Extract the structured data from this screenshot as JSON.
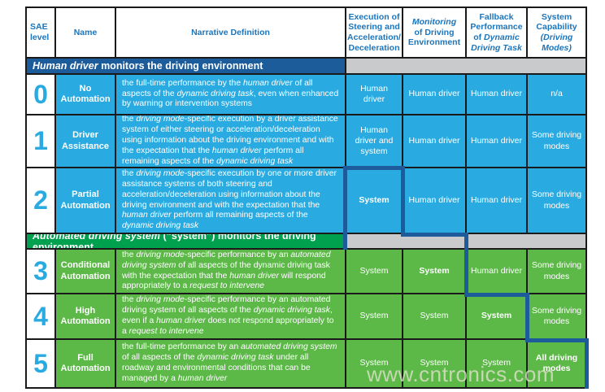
{
  "watermark": "www.cntronics.com",
  "colors": {
    "cyan_cell": "#29abe2",
    "green_cell": "#5cb948",
    "blue_band": "#1c5c9b",
    "green_band": "#00a14e",
    "gray_band": "#c9cacb",
    "header_text_blue": "#1b75bc",
    "divider_line_blue": "#1e5b9b",
    "border_black": "#1a1a1a"
  },
  "chart_data": {
    "type": "table",
    "columns": [
      "SAE level",
      "Name",
      "Narrative Definition",
      "Execution of Steering and Acceleration/Deceleration",
      "Monitoring of Driving Environment",
      "Fallback Performance of Dynamic Driving Task",
      "System Capability (Driving Modes)"
    ],
    "section_bands": [
      {
        "position": "before level 0",
        "label": "Human driver monitors the driving environment"
      },
      {
        "position": "before level 3",
        "label": "Automated driving system (“system”) monitors the driving environment"
      }
    ],
    "rows": [
      [
        "0",
        "No Automation",
        "the full-time performance by the human driver of all aspects of the dynamic driving task, even when enhanced by warning or intervention systems",
        "Human driver",
        "Human driver",
        "Human driver",
        "n/a"
      ],
      [
        "1",
        "Driver Assistance",
        "the driving mode-specific execution by a driver assistance system of either steering or acceleration/deceleration using information about the driving environment and with the expectation that the human driver perform all remaining aspects of the dynamic driving task",
        "Human driver and system",
        "Human driver",
        "Human driver",
        "Some driving modes"
      ],
      [
        "2",
        "Partial Automation",
        "the driving mode-specific execution by one or more driver assistance systems of both steering and acceleration/deceleration using information about the driving environment and with the expectation that the human driver perform all remaining aspects of the dynamic driving task",
        "System",
        "Human driver",
        "Human driver",
        "Some driving modes"
      ],
      [
        "3",
        "Conditional Automation",
        "the driving mode-specific performance by an automated driving system of all aspects of the dynamic driving task with the expectation that the human driver will respond appropriately to a request to intervene",
        "System",
        "System",
        "Human driver",
        "Some driving modes"
      ],
      [
        "4",
        "High Automation",
        "the driving mode-specific performance by an automated driving system of all aspects of the dynamic driving task, even if a human driver does not respond appropriately to a request to intervene",
        "System",
        "System",
        "System",
        "Some driving modes"
      ],
      [
        "5",
        "Full Automation",
        "the full-time performance by an automated driving system of all aspects of the dynamic driving task under all roadway and environmental conditions that can be managed by a human driver",
        "System",
        "System",
        "System",
        "All driving modes"
      ]
    ]
  },
  "table": {
    "headers": [
      {
        "runs": [
          {
            "text": "SAE\nlevel"
          }
        ]
      },
      {
        "runs": [
          {
            "text": "Name"
          }
        ]
      },
      {
        "runs": [
          {
            "text": "Narrative Definition"
          }
        ]
      },
      {
        "runs": [
          {
            "text": "Execution of\nSteering and\nAcceleration/\nDeceleration"
          }
        ]
      },
      {
        "runs": [
          {
            "text": "Monitoring",
            "italic": true
          },
          {
            "text": "\nof Driving\nEnvironment"
          }
        ]
      },
      {
        "runs": [
          {
            "text": "Fallback\nPerformance\nof "
          },
          {
            "text": "Dynamic\nDriving Task",
            "italic": true
          }
        ]
      },
      {
        "runs": [
          {
            "text": "System\nCapability\n"
          },
          {
            "text": "(Driving\nModes)",
            "italic": true
          }
        ]
      }
    ],
    "bands": [
      {
        "runs": [
          {
            "text": "Human driver",
            "italic": true
          },
          {
            "text": " monitors the driving environment"
          }
        ]
      },
      {
        "runs": [
          {
            "text": "Automated driving system",
            "italic": true
          },
          {
            "text": " (“system”) monitors the driving environment"
          }
        ]
      }
    ],
    "rows": [
      {
        "level": "0",
        "name": "No Automation",
        "narrative_runs": [
          {
            "text": "the full-time performance by the "
          },
          {
            "text": "human driver",
            "italic": true
          },
          {
            "text": " of all aspects of the "
          },
          {
            "text": "dynamic driving task",
            "italic": true
          },
          {
            "text": ", even when enhanced by warning or intervention systems"
          }
        ],
        "cells": [
          {
            "runs": [
              {
                "text": "Human driver"
              }
            ]
          },
          {
            "runs": [
              {
                "text": "Human driver"
              }
            ]
          },
          {
            "runs": [
              {
                "text": "Human driver"
              }
            ]
          },
          {
            "runs": [
              {
                "text": "n/a"
              }
            ]
          }
        ]
      },
      {
        "level": "1",
        "name": "Driver Assistance",
        "narrative_runs": [
          {
            "text": "the "
          },
          {
            "text": "driving mode",
            "italic": true
          },
          {
            "text": "-specific execution by a driver assistance system of either steering or acceleration/deceleration using information about the driving environment and with the expectation that the "
          },
          {
            "text": "human driver",
            "italic": true
          },
          {
            "text": " perform all remaining aspects of the "
          },
          {
            "text": "dynamic driving task",
            "italic": true
          }
        ],
        "cells": [
          {
            "runs": [
              {
                "text": "Human driver and system"
              }
            ]
          },
          {
            "runs": [
              {
                "text": "Human driver"
              }
            ]
          },
          {
            "runs": [
              {
                "text": "Human driver"
              }
            ]
          },
          {
            "runs": [
              {
                "text": "Some driving modes"
              }
            ]
          }
        ]
      },
      {
        "level": "2",
        "name": "Partial Automation",
        "narrative_runs": [
          {
            "text": "the "
          },
          {
            "text": "driving mode",
            "italic": true
          },
          {
            "text": "-specific execution by one or more driver assistance systems of both steering and acceleration/deceleration using information about the driving environment and with the expectation that the "
          },
          {
            "text": "human driver",
            "italic": true
          },
          {
            "text": " perform all remaining aspects of the "
          },
          {
            "text": "dynamic driving task",
            "italic": true
          }
        ],
        "cells": [
          {
            "runs": [
              {
                "text": "System",
                "bold": true
              }
            ]
          },
          {
            "runs": [
              {
                "text": "Human driver"
              }
            ]
          },
          {
            "runs": [
              {
                "text": "Human driver"
              }
            ]
          },
          {
            "runs": [
              {
                "text": "Some driving modes"
              }
            ]
          }
        ]
      },
      {
        "level": "3",
        "name": "Conditional Automation",
        "narrative_runs": [
          {
            "text": "the "
          },
          {
            "text": "driving mode",
            "italic": true
          },
          {
            "text": "-specific performance by an "
          },
          {
            "text": "automated driving system",
            "italic": true
          },
          {
            "text": " of all aspects of the dynamic driving task with the expectation that the "
          },
          {
            "text": "human driver",
            "italic": true
          },
          {
            "text": " will respond appropriately to a "
          },
          {
            "text": "request to intervene",
            "italic": true
          }
        ],
        "cells": [
          {
            "runs": [
              {
                "text": "System"
              }
            ]
          },
          {
            "runs": [
              {
                "text": "System",
                "bold": true
              }
            ]
          },
          {
            "runs": [
              {
                "text": "Human driver"
              }
            ]
          },
          {
            "runs": [
              {
                "text": "Some driving modes"
              }
            ]
          }
        ]
      },
      {
        "level": "4",
        "name": "High Automation",
        "narrative_runs": [
          {
            "text": "the "
          },
          {
            "text": "driving mode",
            "italic": true
          },
          {
            "text": "-specific performance by an automated driving system of all aspects of the "
          },
          {
            "text": "dynamic driving task",
            "italic": true
          },
          {
            "text": ", even if a "
          },
          {
            "text": "human driver",
            "italic": true
          },
          {
            "text": " does not respond appropriately to a "
          },
          {
            "text": "request to intervene",
            "italic": true
          }
        ],
        "cells": [
          {
            "runs": [
              {
                "text": "System"
              }
            ]
          },
          {
            "runs": [
              {
                "text": "System"
              }
            ]
          },
          {
            "runs": [
              {
                "text": "System",
                "bold": true
              }
            ]
          },
          {
            "runs": [
              {
                "text": "Some driving modes"
              }
            ]
          }
        ]
      },
      {
        "level": "5",
        "name": "Full Automation",
        "narrative_runs": [
          {
            "text": "the full-time performance by an "
          },
          {
            "text": "automated driving system",
            "italic": true
          },
          {
            "text": " of all aspects of the "
          },
          {
            "text": "dynamic driving task",
            "italic": true
          },
          {
            "text": " under all roadway and environmental conditions that can be managed by a "
          },
          {
            "text": "human driver",
            "italic": true
          }
        ],
        "cells": [
          {
            "runs": [
              {
                "text": "System"
              }
            ]
          },
          {
            "runs": [
              {
                "text": "System"
              }
            ]
          },
          {
            "runs": [
              {
                "text": "System"
              }
            ]
          },
          {
            "runs": [
              {
                "text": "All driving modes",
                "bold": true
              }
            ]
          }
        ]
      }
    ]
  }
}
